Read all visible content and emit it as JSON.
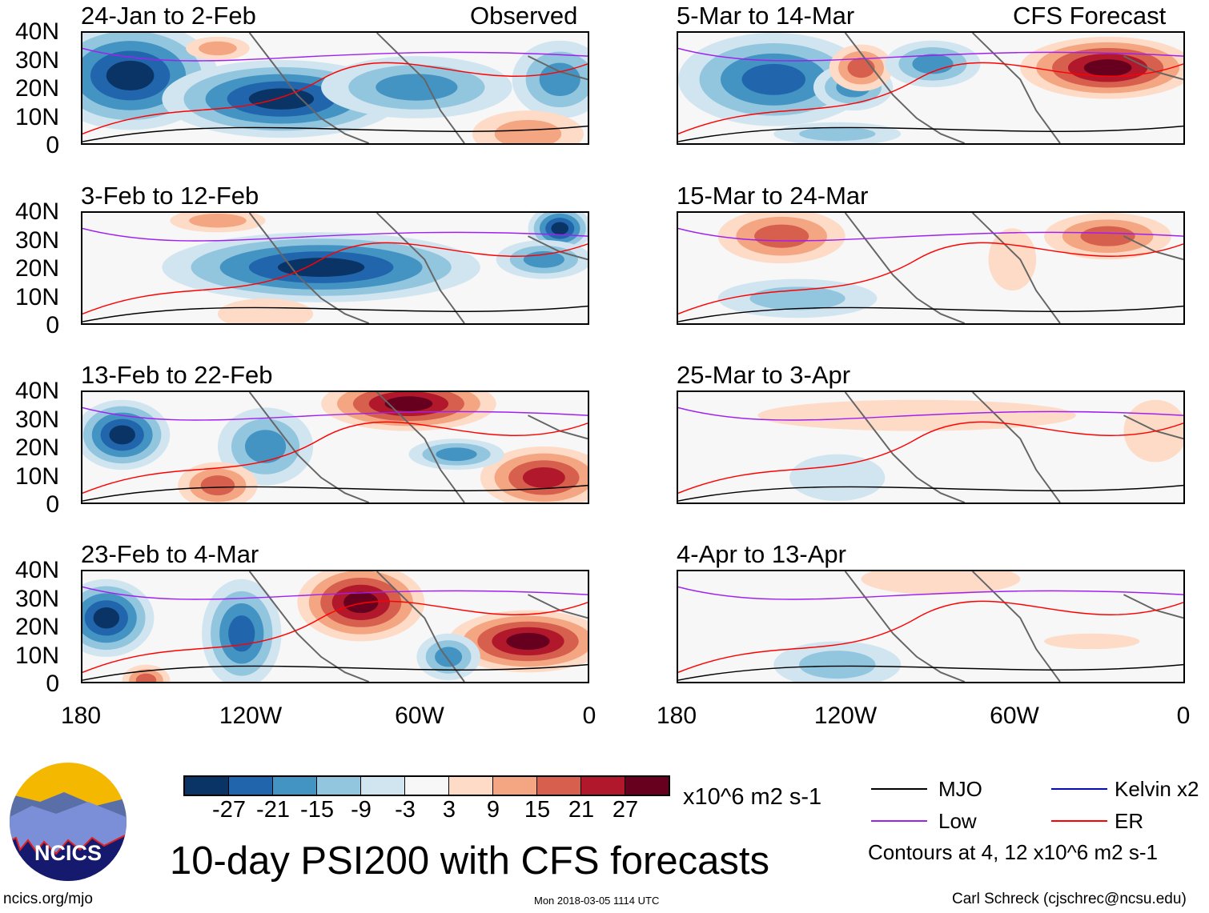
{
  "header": {
    "observed_label": "Observed",
    "forecast_label": "CFS Forecast"
  },
  "panels_left": [
    {
      "title": "24-Jan to 2-Feb"
    },
    {
      "title": "3-Feb to 12-Feb"
    },
    {
      "title": "13-Feb to 22-Feb"
    },
    {
      "title": "23-Feb to 4-Mar"
    }
  ],
  "panels_right": [
    {
      "title": "5-Mar to 14-Mar"
    },
    {
      "title": "15-Mar to 24-Mar"
    },
    {
      "title": "25-Mar to 3-Apr"
    },
    {
      "title": "4-Apr to 13-Apr"
    }
  ],
  "y_ticks": [
    "40N",
    "30N",
    "20N",
    "10N",
    "0"
  ],
  "x_ticks": [
    "180",
    "120W",
    "60W",
    "0"
  ],
  "colorbar": {
    "colors": [
      "#0b3466",
      "#2166ac",
      "#4393c3",
      "#92c5de",
      "#d1e5f0",
      "#f7f7f7",
      "#fddbc7",
      "#f4a582",
      "#d6604d",
      "#b2182b",
      "#67001f"
    ],
    "labels": [
      "-27",
      "-21",
      "-15",
      "-9",
      "-3",
      "3",
      "9",
      "15",
      "21",
      "27"
    ],
    "units": "x10^6 m2 s-1"
  },
  "legend": {
    "items": [
      {
        "label": "MJO",
        "color": "#000000"
      },
      {
        "label": "Kelvin x2",
        "color": "#0000ff"
      },
      {
        "label": "Low",
        "color": "#a020f0"
      },
      {
        "label": "ER",
        "color": "#ff0000"
      }
    ],
    "contours_note": "Contours at 4, 12 x10^6 m2 s-1"
  },
  "title": "10-day PSI200 with CFS forecasts",
  "logo_text": "NCICS",
  "footer": {
    "url": "ncics.org/mjo",
    "timestamp": "Mon 2018-03-05 1114 UTC",
    "author": "Carl Schreck (cjschrec@ncsu.edu)"
  }
}
